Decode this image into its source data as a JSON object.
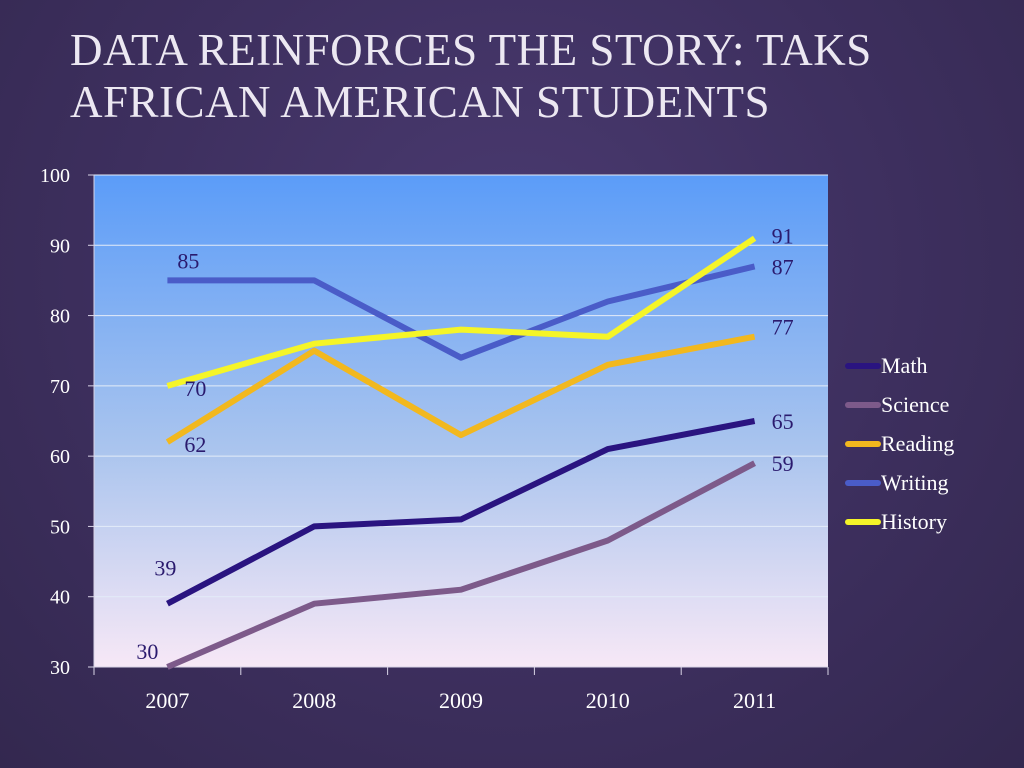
{
  "slide": {
    "title_line1": "DATA REINFORCES THE STORY:  TAKS",
    "title_line2": "AFRICAN AMERICAN STUDENTS"
  },
  "chart_data": {
    "type": "line",
    "title": "DATA REINFORCES THE STORY:  TAKS AFRICAN AMERICAN STUDENTS",
    "xlabel": "",
    "ylabel": "",
    "categories": [
      "2007",
      "2008",
      "2009",
      "2010",
      "2011"
    ],
    "ylim": [
      30,
      100
    ],
    "yticks": [
      30,
      40,
      50,
      60,
      70,
      80,
      90,
      100
    ],
    "grid": true,
    "legend_position": "right",
    "series": [
      {
        "name": "Math",
        "values": [
          39,
          50,
          51,
          61,
          65
        ],
        "color": "#2a1480",
        "labels": [
          "39",
          "",
          "",
          "",
          "65"
        ]
      },
      {
        "name": "Science",
        "values": [
          30,
          39,
          41,
          48,
          59
        ],
        "color": "#7d5a8a",
        "labels": [
          "30",
          "",
          "",
          "",
          "59"
        ]
      },
      {
        "name": "Reading",
        "values": [
          62,
          75,
          63,
          73,
          77
        ],
        "color": "#f2b81e",
        "labels": [
          "62",
          "",
          "",
          "",
          "77"
        ]
      },
      {
        "name": "Writing",
        "values": [
          85,
          85,
          74,
          82,
          87
        ],
        "color": "#4a5cc8",
        "labels": [
          "85",
          "",
          "",
          "",
          "87"
        ]
      },
      {
        "name": "History",
        "values": [
          70,
          76,
          78,
          77,
          91
        ],
        "color": "#f5f528",
        "labels": [
          "70",
          "",
          "",
          "",
          "91"
        ]
      }
    ]
  }
}
